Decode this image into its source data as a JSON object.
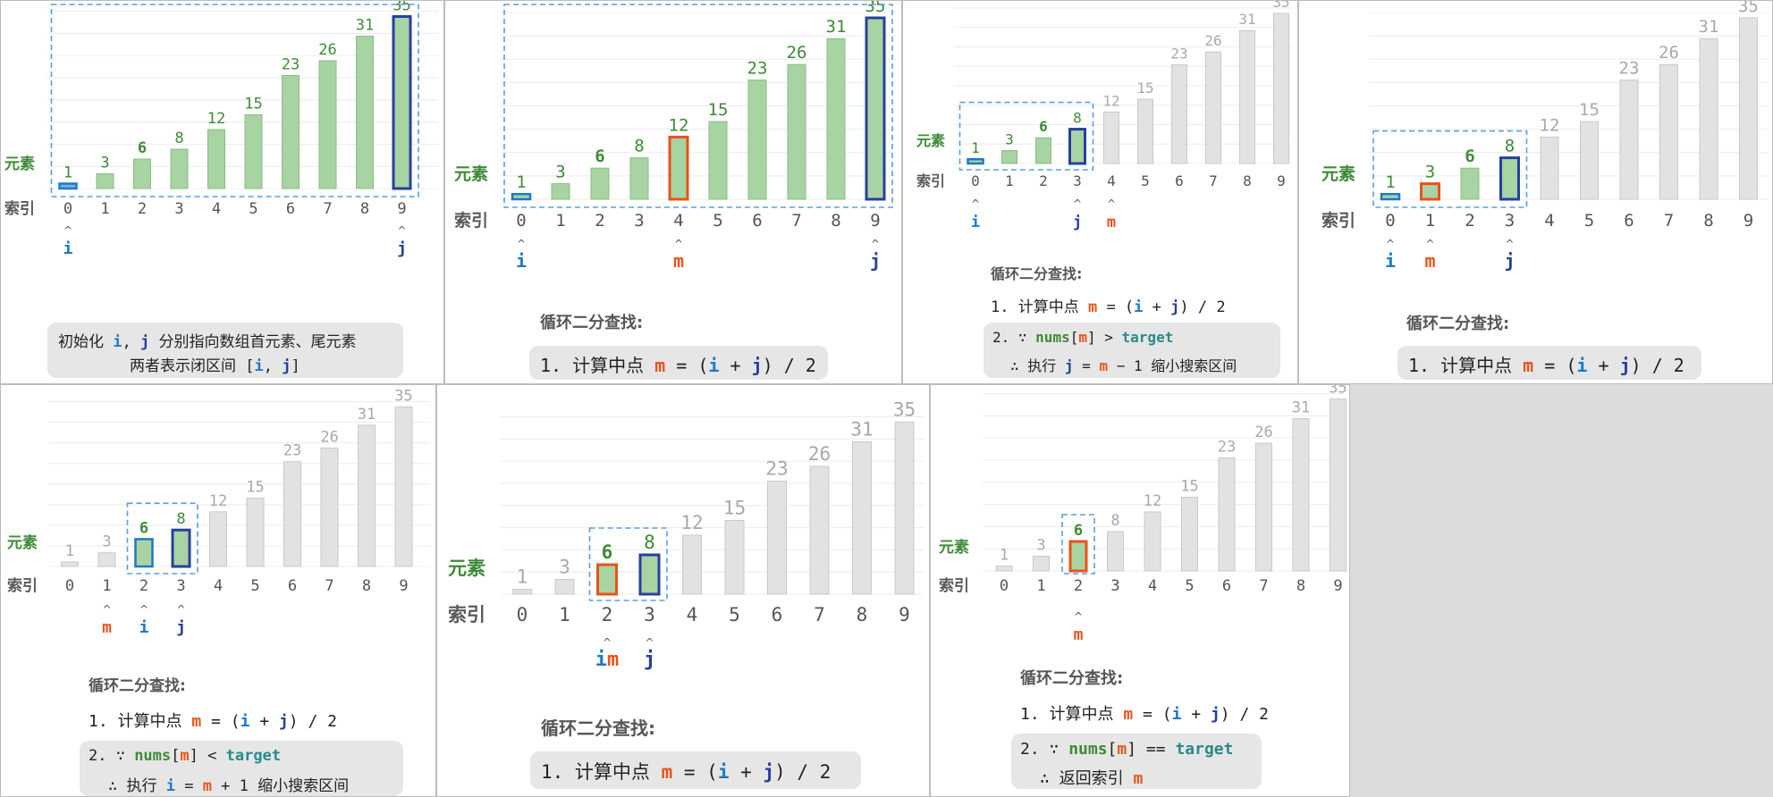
{
  "labels": {
    "element": "元素",
    "index": "索引"
  },
  "array": [
    1,
    3,
    6,
    8,
    12,
    15,
    23,
    26,
    31,
    35
  ],
  "indices": [
    "0",
    "1",
    "2",
    "3",
    "4",
    "5",
    "6",
    "7",
    "8",
    "9"
  ],
  "colors": {
    "active_fill": "#a8d3a3",
    "active_stroke": "#86bf80",
    "inactive_fill": "#e2e2e0",
    "inactive_stroke": "#c9c9c6",
    "active_text": "#3f8a38",
    "inactive_text": "#a8a8a8",
    "i_color": "#1f78c8",
    "j_color": "#27409c",
    "m_color": "#e8531a",
    "bracket": "#5a9ee0",
    "first_bar": "#6fb0e0"
  },
  "panels": [
    {
      "id": "step1",
      "active_range": [
        0,
        9
      ],
      "pointers": [
        {
          "index": 0,
          "label": "i",
          "type": "i"
        },
        {
          "index": 9,
          "label": "j",
          "type": "j"
        }
      ],
      "m_index": null,
      "text": {
        "line1_pre": "初始化 ",
        "i": "i",
        "sep": ", ",
        "j": "j",
        "line1_post": " 分别指向数组首元素、尾元素",
        "line2_pre": "两者表示闭区间 [",
        "i2": "i",
        "sep2": ", ",
        "j2": "j",
        "line2_post": "]"
      }
    },
    {
      "id": "step2",
      "active_range": [
        0,
        9
      ],
      "pointers": [
        {
          "index": 0,
          "label": "i",
          "type": "i"
        },
        {
          "index": 4,
          "label": "m",
          "type": "m"
        },
        {
          "index": 9,
          "label": "j",
          "type": "j"
        }
      ],
      "m_index": 4,
      "text": {
        "title": "循环二分查找:",
        "step1_a": "1. 计算中点 ",
        "m": "m",
        "step1_b": " = (",
        "i": "i",
        "plus": " + ",
        "j": "j",
        "step1_c": ") / 2"
      }
    },
    {
      "id": "step3",
      "active_range": [
        0,
        3
      ],
      "pointers": [
        {
          "index": 0,
          "label": "i",
          "type": "i"
        },
        {
          "index": 3,
          "label": "j",
          "type": "j"
        },
        {
          "index": 4,
          "label": "m",
          "type": "m"
        }
      ],
      "m_index": null,
      "text": {
        "title": "循环二分查找:",
        "step1_a": "1. 计算中点 ",
        "m": "m",
        "step1_b": " = (",
        "i": "i",
        "plus": " + ",
        "j": "j",
        "step1_c": ") / 2",
        "step2_a": "2. ∵ ",
        "nums": "nums",
        "br_open": "[",
        "m2": "m",
        "br_close": "]",
        "op": " > ",
        "target": "target",
        "step3_a": "∴ 执行 ",
        "j2": "j",
        "eq": " = ",
        "m3": "m",
        "step3_b": " − 1 缩小搜索区间"
      }
    },
    {
      "id": "step4",
      "active_range": [
        0,
        3
      ],
      "pointers": [
        {
          "index": 0,
          "label": "i",
          "type": "i"
        },
        {
          "index": 1,
          "label": "m",
          "type": "m"
        },
        {
          "index": 3,
          "label": "j",
          "type": "j"
        }
      ],
      "m_index": 1,
      "text": {
        "title": "循环二分查找:",
        "step1_a": "1. 计算中点 ",
        "m": "m",
        "step1_b": " = (",
        "i": "i",
        "plus": " + ",
        "j": "j",
        "step1_c": ") / 2"
      }
    },
    {
      "id": "step5",
      "active_range": [
        2,
        3
      ],
      "pointers": [
        {
          "index": 1,
          "label": "m",
          "type": "m"
        },
        {
          "index": 2,
          "label": "i",
          "type": "i"
        },
        {
          "index": 3,
          "label": "j",
          "type": "j"
        }
      ],
      "m_index": null,
      "text": {
        "title": "循环二分查找:",
        "step1_a": "1. 计算中点 ",
        "m": "m",
        "step1_b": " = (",
        "i": "i",
        "plus": " + ",
        "j": "j",
        "step1_c": ") / 2",
        "step2_a": "2. ∵ ",
        "nums": "nums",
        "br_open": "[",
        "m2": "m",
        "br_close": "]",
        "op": " < ",
        "target": "target",
        "step3_a": "∴ 执行 ",
        "j2": "i",
        "eq": " = ",
        "m3": "m",
        "step3_b": " + 1 缩小搜索区间"
      }
    },
    {
      "id": "step6",
      "active_range": [
        2,
        3
      ],
      "pointers": [
        {
          "index": 2,
          "label": "im",
          "type": "im"
        },
        {
          "index": 3,
          "label": "j",
          "type": "j"
        }
      ],
      "m_index": 2,
      "text": {
        "title": "循环二分查找:",
        "step1_a": "1. 计算中点 ",
        "m": "m",
        "step1_b": " = (",
        "i": "i",
        "plus": " + ",
        "j": "j",
        "step1_c": ") / 2"
      }
    },
    {
      "id": "step7",
      "active_range": [
        2,
        2
      ],
      "pointers": [
        {
          "index": 2,
          "label": "m",
          "type": "m"
        }
      ],
      "m_index": 2,
      "text": {
        "title": "循环二分查找:",
        "step1_a": "1. 计算中点 ",
        "m": "m",
        "step1_b": " = (",
        "i": "i",
        "plus": " + ",
        "j": "j",
        "step1_c": ") / 2",
        "step2_a": "2. ∵ ",
        "nums": "nums",
        "br_open": "[",
        "m2": "m",
        "br_close": "]",
        "op": " == ",
        "target": "target",
        "step3_a": "∴ 返回索引 ",
        "m3": "m"
      }
    }
  ]
}
